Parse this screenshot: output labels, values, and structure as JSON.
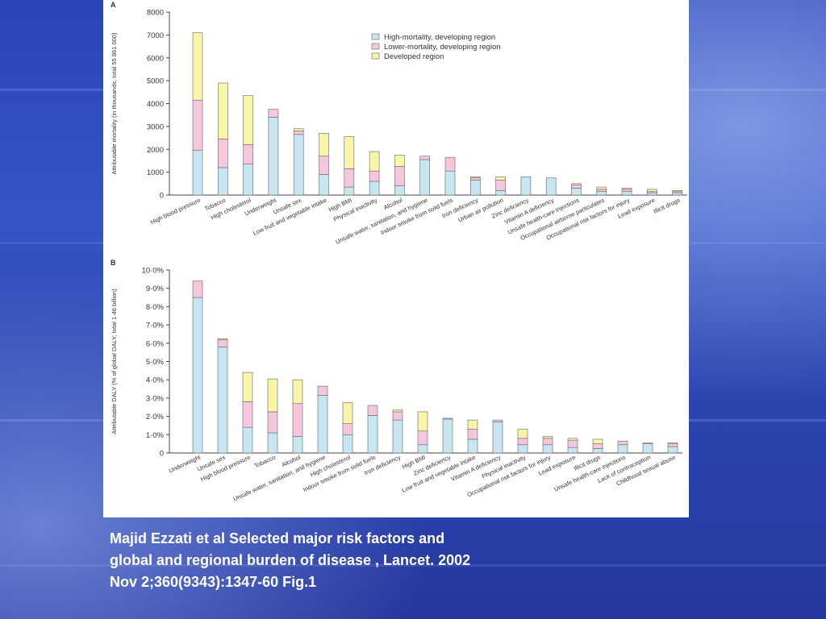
{
  "colors": {
    "high_mortality": "#c6e6f2",
    "lower_mortality": "#f5c6dc",
    "developed": "#f8f5a8",
    "edge": "#666666"
  },
  "chart_data": [
    {
      "type": "bar",
      "stacked": true,
      "panel_label": "A",
      "ylabel": "Attributable mortality (in thousands; total 55 861 000)",
      "ylim": [
        0,
        8000
      ],
      "yticks": [
        "0",
        "1000",
        "2000",
        "3000",
        "4000",
        "5000",
        "6000",
        "7000",
        "8000"
      ],
      "grid": false,
      "legend_position": "top-right",
      "legend": [
        "High-mortality, developing region",
        "Lower-mortality, developing region",
        "Developed region"
      ],
      "categories": [
        "High blood pressure",
        "Tobacco",
        "High cholesterol",
        "Underweight",
        "Unsafe sex",
        "Low fruit and vegetable intake",
        "High BMI",
        "Physical inactivity",
        "Alcohol",
        "Unsafe water, sanitation, and hygiene",
        "Indoor smoke from solid fuels",
        "Iron deficiency",
        "Urban air pollution",
        "Zinc deficiency",
        "Vitamin A deficiency",
        "Unsafe health-care injections",
        "Occupational airborne particulates",
        "Occupational risk factors for injury",
        "Lead exposure",
        "Illicit drugs"
      ],
      "series": [
        {
          "name": "High-mortality, developing region",
          "values": [
            1950,
            1200,
            1350,
            3400,
            2650,
            900,
            350,
            600,
            400,
            1550,
            1050,
            650,
            200,
            800,
            750,
            300,
            150,
            150,
            100,
            100
          ]
        },
        {
          "name": "Lower-mortality, developing region",
          "values": [
            2200,
            1250,
            850,
            350,
            150,
            800,
            800,
            450,
            850,
            150,
            600,
            100,
            450,
            0,
            0,
            150,
            100,
            100,
            50,
            50
          ]
        },
        {
          "name": "Developed region",
          "values": [
            2950,
            2450,
            2150,
            0,
            100,
            1000,
            1400,
            850,
            500,
            0,
            0,
            50,
            150,
            0,
            0,
            50,
            100,
            50,
            100,
            50
          ]
        }
      ]
    },
    {
      "type": "bar",
      "stacked": true,
      "panel_label": "B",
      "ylabel": "Attributable DALY (% of global DALY; total 1·46 billion)",
      "ylim": [
        0,
        10
      ],
      "yticks": [
        "0",
        "1·0%",
        "2·0%",
        "3·0%",
        "4·0%",
        "5·0%",
        "6·0%",
        "7·0%",
        "8·0%",
        "9·0%",
        "10·0%"
      ],
      "grid": false,
      "categories": [
        "Underweight",
        "Unsafe sex",
        "High blood pressure",
        "Tobacco",
        "Alcohol",
        "Unsafe water, sanitation, and hygiene",
        "High cholesterol",
        "Indoor smoke from solid fuels",
        "Iron deficiency",
        "High BMI",
        "Zinc deficiency",
        "Low fruit and vegetable intake",
        "Vitamin A deficiency",
        "Physical inactivity",
        "Occupational risk factors for injury",
        "Lead exposure",
        "Illicit drugs",
        "Unsafe health-care injections",
        "Lack of contraception",
        "Childhood sexual abuse"
      ],
      "series": [
        {
          "name": "High-mortality, developing region",
          "values": [
            8.5,
            5.8,
            1.4,
            1.1,
            0.9,
            3.15,
            1.0,
            2.05,
            1.8,
            0.45,
            1.85,
            0.75,
            1.7,
            0.45,
            0.45,
            0.3,
            0.25,
            0.45,
            0.5,
            0.35
          ]
        },
        {
          "name": "Lower-mortality, developing region",
          "values": [
            0.9,
            0.4,
            1.4,
            1.15,
            1.8,
            0.5,
            0.6,
            0.55,
            0.45,
            0.75,
            0.05,
            0.55,
            0.1,
            0.35,
            0.35,
            0.4,
            0.25,
            0.2,
            0.05,
            0.15
          ]
        },
        {
          "name": "Developed region",
          "values": [
            0.0,
            0.05,
            1.6,
            1.8,
            1.3,
            0.0,
            1.15,
            0.0,
            0.1,
            1.05,
            0.0,
            0.5,
            0.0,
            0.5,
            0.1,
            0.1,
            0.25,
            0.0,
            0.0,
            0.05
          ]
        }
      ]
    }
  ],
  "caption": {
    "line1": "Majid Ezzati et al Selected major risk factors and",
    "line2": "global and regional burden of disease , Lancet. 2002",
    "line3": "Nov 2;360(9343):1347-60 Fig.1"
  }
}
